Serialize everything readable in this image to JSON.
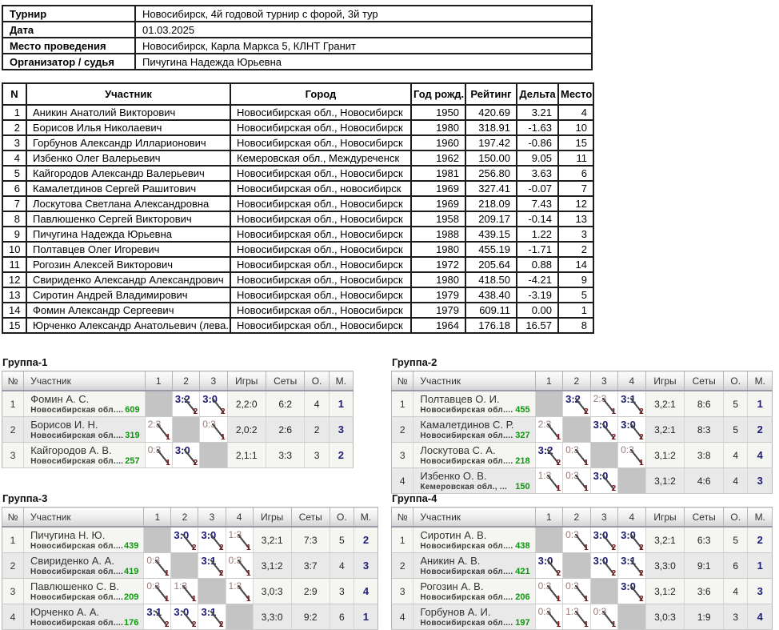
{
  "info": {
    "rows": [
      {
        "label": "Турнир",
        "value": "Новосибирск, 4й годовой турнир с форой, 3й тур"
      },
      {
        "label": "Дата",
        "value": "01.03.2025"
      },
      {
        "label": "Место проведения",
        "value": "Новосибирск, Карла Маркса 5, КЛНТ Гранит"
      },
      {
        "label": "Организатор / судья",
        "value": "Пичугина Надежда Юрьевна"
      }
    ]
  },
  "main_table": {
    "headers": [
      "N",
      "Участник",
      "Город",
      "Год рожд.",
      "Рейтинг",
      "Дельта",
      "Место"
    ],
    "rows": [
      {
        "n": "1",
        "name": "Аникин Анатолий Викторович",
        "city": "Новосибирская обл., Новосибирск",
        "year": "1950",
        "rating": "420.69",
        "delta": "3.21",
        "place": "4"
      },
      {
        "n": "2",
        "name": "Борисов Илья Николаевич",
        "city": "Новосибирская обл., Новосибирск",
        "year": "1980",
        "rating": "318.91",
        "delta": "-1.63",
        "place": "10"
      },
      {
        "n": "3",
        "name": "Горбунов Александр Илларионович",
        "city": "Новосибирская обл., Новосибирск",
        "year": "1960",
        "rating": "197.42",
        "delta": "-0.86",
        "place": "15"
      },
      {
        "n": "4",
        "name": "Избенко Олег Валерьевич",
        "city": "Кемеровская обл., Междуреченск",
        "year": "1962",
        "rating": "150.00",
        "delta": "9.05",
        "place": "11"
      },
      {
        "n": "5",
        "name": "Кайгородов Александр Валерьевич",
        "city": "Новосибирская обл., Новосибирск",
        "year": "1981",
        "rating": "256.80",
        "delta": "3.63",
        "place": "6"
      },
      {
        "n": "6",
        "name": "Камалетдинов Сергей Рашитович",
        "city": "Новосибирская обл., новосибирск",
        "year": "1969",
        "rating": "327.41",
        "delta": "-0.07",
        "place": "7"
      },
      {
        "n": "7",
        "name": "Лоскутова Светлана Александровна",
        "city": "Новосибирская обл., Новосибирск",
        "year": "1969",
        "rating": "218.09",
        "delta": "7.43",
        "place": "12"
      },
      {
        "n": "8",
        "name": "Павлюшенко Сергей Викторович",
        "city": "Новосибирская обл., Новосибирск",
        "year": "1958",
        "rating": "209.17",
        "delta": "-0.14",
        "place": "13"
      },
      {
        "n": "9",
        "name": "Пичугина Надежда Юрьевна",
        "city": "Новосибирская обл., Новосибирск",
        "year": "1988",
        "rating": "439.15",
        "delta": "1.22",
        "place": "3"
      },
      {
        "n": "10",
        "name": "Полтавцев Олег Игоревич",
        "city": "Новосибирская обл., Новосибирск",
        "year": "1980",
        "rating": "455.19",
        "delta": "-1.71",
        "place": "2"
      },
      {
        "n": "11",
        "name": "Рогозин Алексей Викторович",
        "city": "Новосибирская обл., Новосибирск",
        "year": "1972",
        "rating": "205.64",
        "delta": "0.88",
        "place": "14"
      },
      {
        "n": "12",
        "name": "Свириденко Александр Александрович",
        "city": "Новосибирская обл., Новосибирск",
        "year": "1980",
        "rating": "418.50",
        "delta": "-4.21",
        "place": "9"
      },
      {
        "n": "13",
        "name": "Сиротин Андрей Владимирович",
        "city": "Новосибирская обл., Новосибирск",
        "year": "1979",
        "rating": "438.40",
        "delta": "-3.19",
        "place": "5"
      },
      {
        "n": "14",
        "name": "Фомин Александр Сергеевич",
        "city": "Новосибирская обл., Новосибирск",
        "year": "1979",
        "rating": "609.11",
        "delta": "0.00",
        "place": "1"
      },
      {
        "n": "15",
        "name": "Юрченко Александр Анатольевич (лева...",
        "city": "Новосибирская обл., Новосибирск",
        "year": "1964",
        "rating": "176.18",
        "delta": "16.57",
        "place": "8"
      }
    ]
  },
  "group_header": {
    "num": "№",
    "participant": "Участник",
    "games": "Игры",
    "sets": "Сеты",
    "points": "О.",
    "place": "М."
  },
  "groups": [
    {
      "title": "Группа-1",
      "score_columns": [
        "1",
        "2",
        "3"
      ],
      "rows": [
        {
          "num": "1",
          "name": "Фомин А. С.",
          "region": "Новосибирская обл....",
          "rating": "609",
          "cells": [
            {
              "self": true
            },
            {
              "score": "3:2",
              "fora": "2",
              "win": true
            },
            {
              "score": "3:0",
              "fora": "2",
              "win": true
            }
          ],
          "games": "2,2:0",
          "sets": "6:2",
          "points": "4",
          "place": "1"
        },
        {
          "num": "2",
          "name": "Борисов И. Н.",
          "region": "Новосибирская обл....",
          "rating": "319",
          "cells": [
            {
              "score": "2:3",
              "fora": "1",
              "win": false
            },
            {
              "self": true
            },
            {
              "score": "0:3",
              "fora": "1",
              "win": false
            }
          ],
          "games": "2,0:2",
          "sets": "2:6",
          "points": "2",
          "place": "3"
        },
        {
          "num": "3",
          "name": "Кайгородов А. В.",
          "region": "Новосибирская обл....",
          "rating": "257",
          "cells": [
            {
              "score": "0:3",
              "fora": "1",
              "win": false
            },
            {
              "score": "3:0",
              "fora": "2",
              "win": true
            },
            {
              "self": true
            }
          ],
          "games": "2,1:1",
          "sets": "3:3",
          "points": "3",
          "place": "2"
        }
      ]
    },
    {
      "title": "Группа-2",
      "score_columns": [
        "1",
        "2",
        "3",
        "4"
      ],
      "rows": [
        {
          "num": "1",
          "name": "Полтавцев О. И.",
          "region": "Новосибирская обл....",
          "rating": "455",
          "cells": [
            {
              "self": true
            },
            {
              "score": "3:2",
              "fora": "2",
              "win": true
            },
            {
              "score": "2:3",
              "fora": "1",
              "win": false
            },
            {
              "score": "3:1",
              "fora": "2",
              "win": true
            }
          ],
          "games": "3,2:1",
          "sets": "8:6",
          "points": "5",
          "place": "1"
        },
        {
          "num": "2",
          "name": "Камалетдинов С. Р.",
          "region": "Новосибирская обл....",
          "rating": "327",
          "cells": [
            {
              "score": "2:3",
              "fora": "1",
              "win": false
            },
            {
              "self": true
            },
            {
              "score": "3:0",
              "fora": "2",
              "win": true
            },
            {
              "score": "3:0",
              "fora": "2",
              "win": true
            }
          ],
          "games": "3,2:1",
          "sets": "8:3",
          "points": "5",
          "place": "2"
        },
        {
          "num": "3",
          "name": "Лоскутова С. А.",
          "region": "Новосибирская обл....",
          "rating": "218",
          "cells": [
            {
              "score": "3:2",
              "fora": "2",
              "win": true
            },
            {
              "score": "0:3",
              "fora": "1",
              "win": false
            },
            {
              "self": true
            },
            {
              "score": "0:3",
              "fora": "1",
              "win": false
            }
          ],
          "games": "3,1:2",
          "sets": "3:8",
          "points": "4",
          "place": "4"
        },
        {
          "num": "4",
          "name": "Избенко О. В.",
          "region": "Кемеровская обл., ...",
          "rating": "150",
          "cells": [
            {
              "score": "1:3",
              "fora": "1",
              "win": false
            },
            {
              "score": "0:3",
              "fora": "1",
              "win": false
            },
            {
              "score": "3:0",
              "fora": "2",
              "win": true
            },
            {
              "self": true
            }
          ],
          "games": "3,1:2",
          "sets": "4:6",
          "points": "4",
          "place": "3"
        }
      ]
    },
    {
      "title": "Группа-3",
      "score_columns": [
        "1",
        "2",
        "3",
        "4"
      ],
      "rows": [
        {
          "num": "1",
          "name": "Пичугина Н. Ю.",
          "region": "Новосибирская обл....",
          "rating": "439",
          "cells": [
            {
              "self": true
            },
            {
              "score": "3:0",
              "fora": "2",
              "win": true
            },
            {
              "score": "3:0",
              "fora": "2",
              "win": true
            },
            {
              "score": "1:3",
              "fora": "1",
              "win": false
            }
          ],
          "games": "3,2:1",
          "sets": "7:3",
          "points": "5",
          "place": "2"
        },
        {
          "num": "2",
          "name": "Свириденко А. А.",
          "region": "Новосибирская обл....",
          "rating": "419",
          "cells": [
            {
              "score": "0:3",
              "fora": "1",
              "win": false
            },
            {
              "self": true
            },
            {
              "score": "3:1",
              "fora": "2",
              "win": true
            },
            {
              "score": "0:3",
              "fora": "1",
              "win": false
            }
          ],
          "games": "3,1:2",
          "sets": "3:7",
          "points": "4",
          "place": "3"
        },
        {
          "num": "3",
          "name": "Павлюшенко С. В.",
          "region": "Новосибирская обл....",
          "rating": "209",
          "cells": [
            {
              "score": "0:3",
              "fora": "1",
              "win": false
            },
            {
              "score": "1:3",
              "fora": "1",
              "win": false
            },
            {
              "self": true
            },
            {
              "score": "1:3",
              "fora": "1",
              "win": false
            }
          ],
          "games": "3,0:3",
          "sets": "2:9",
          "points": "3",
          "place": "4"
        },
        {
          "num": "4",
          "name": "Юрченко А. А.",
          "region": "Новосибирская обл....",
          "rating": "176",
          "cells": [
            {
              "score": "3:1",
              "fora": "2",
              "win": true
            },
            {
              "score": "3:0",
              "fora": "2",
              "win": true
            },
            {
              "score": "3:1",
              "fora": "2",
              "win": true
            },
            {
              "self": true
            }
          ],
          "games": "3,3:0",
          "sets": "9:2",
          "points": "6",
          "place": "1"
        }
      ]
    },
    {
      "title": "Группа-4",
      "score_columns": [
        "1",
        "2",
        "3",
        "4"
      ],
      "rows": [
        {
          "num": "1",
          "name": "Сиротин А. В.",
          "region": "Новосибирская обл....",
          "rating": "438",
          "cells": [
            {
              "self": true
            },
            {
              "score": "0:3",
              "fora": "1",
              "win": false
            },
            {
              "score": "3:0",
              "fora": "2",
              "win": true
            },
            {
              "score": "3:0",
              "fora": "2",
              "win": true
            }
          ],
          "games": "3,2:1",
          "sets": "6:3",
          "points": "5",
          "place": "2"
        },
        {
          "num": "2",
          "name": "Аникин А. В.",
          "region": "Новосибирская обл....",
          "rating": "421",
          "cells": [
            {
              "score": "3:0",
              "fora": "2",
              "win": true
            },
            {
              "self": true
            },
            {
              "score": "3:0",
              "fora": "2",
              "win": true
            },
            {
              "score": "3:1",
              "fora": "2",
              "win": true
            }
          ],
          "games": "3,3:0",
          "sets": "9:1",
          "points": "6",
          "place": "1"
        },
        {
          "num": "3",
          "name": "Рогозин А. В.",
          "region": "Новосибирская обл....",
          "rating": "206",
          "cells": [
            {
              "score": "0:3",
              "fora": "1",
              "win": false
            },
            {
              "score": "0:3",
              "fora": "1",
              "win": false
            },
            {
              "self": true
            },
            {
              "score": "3:0",
              "fora": "2",
              "win": true
            }
          ],
          "games": "3,1:2",
          "sets": "3:6",
          "points": "4",
          "place": "3"
        },
        {
          "num": "4",
          "name": "Горбунов А. И.",
          "region": "Новосибирская обл....",
          "rating": "197",
          "cells": [
            {
              "score": "0:3",
              "fora": "1",
              "win": false
            },
            {
              "score": "1:3",
              "fora": "1",
              "win": false
            },
            {
              "score": "0:3",
              "fora": "1",
              "win": false
            },
            {
              "self": true
            }
          ],
          "games": "3,0:3",
          "sets": "1:9",
          "points": "3",
          "place": "4"
        }
      ]
    }
  ],
  "colors": {
    "win_score": "#1b1b6f",
    "loss_score": "#9a7b7b",
    "handicap": "#7a1616",
    "rating_green": "#0a9a0a",
    "place_navy": "#1f1f7a",
    "self_cell_gray": "#c4c4c4"
  }
}
